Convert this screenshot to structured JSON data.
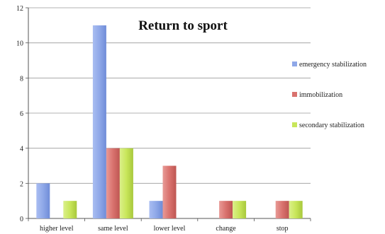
{
  "chart_data": {
    "type": "bar",
    "title": "Return to sport",
    "categories": [
      "higher level",
      "same level",
      "lower level",
      "change",
      "stop"
    ],
    "series": [
      {
        "name": "emergency stabilization",
        "values": [
          2,
          11,
          1,
          0,
          0
        ],
        "color": "#8FA8E8"
      },
      {
        "name": "immobilization",
        "values": [
          0,
          4,
          3,
          1,
          1
        ],
        "color": "#D9726E"
      },
      {
        "name": "secondary stabilization",
        "values": [
          1,
          4,
          0,
          1,
          1
        ],
        "color": "#C8E65A"
      }
    ],
    "ylim": [
      0,
      12
    ],
    "yticks": [
      0,
      2,
      4,
      6,
      8,
      10,
      12
    ],
    "grid": true,
    "legend": "right"
  }
}
